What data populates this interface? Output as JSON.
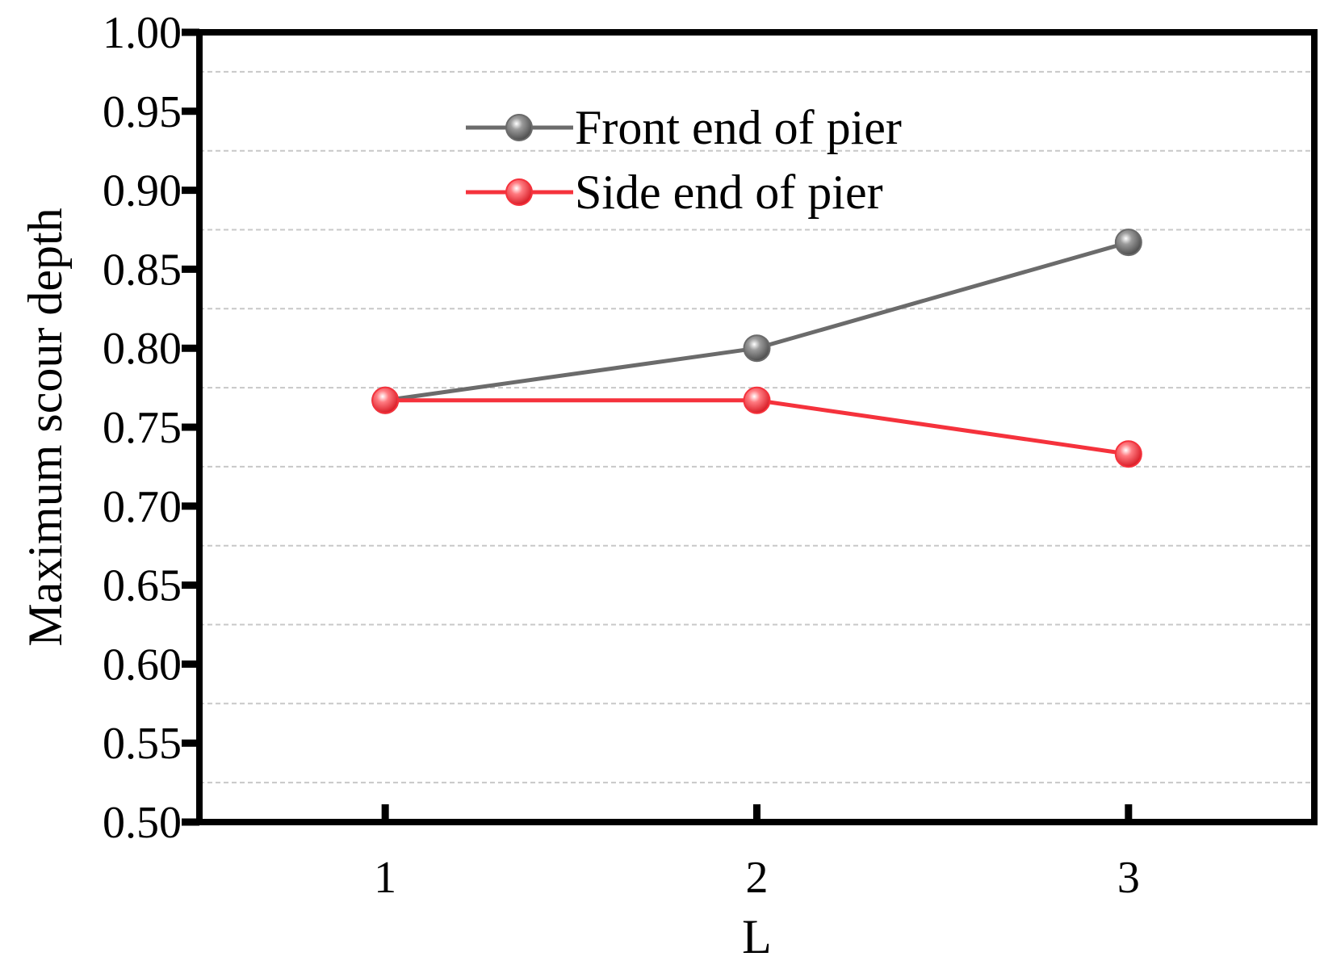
{
  "chart_data": {
    "type": "line",
    "title": "",
    "xlabel": "L",
    "ylabel": "Maximum scour depth",
    "x": [
      1,
      2,
      3
    ],
    "x_tick_labels": [
      "1",
      "2",
      "3"
    ],
    "xlim": [
      0.5,
      3.5
    ],
    "ylim": [
      0.5,
      1.0
    ],
    "y_ticks": [
      0.5,
      0.55,
      0.6,
      0.65,
      0.7,
      0.75,
      0.8,
      0.85,
      0.9,
      0.95,
      1.0
    ],
    "y_tick_labels": [
      "0.50",
      "0.55",
      "0.60",
      "0.65",
      "0.70",
      "0.75",
      "0.80",
      "0.85",
      "0.90",
      "0.95",
      "1.00"
    ],
    "grid": true,
    "legend_position": "top-center",
    "series": [
      {
        "name": "Front end of pier",
        "color": "#6b6b6b",
        "values": [
          0.767,
          0.8,
          0.867
        ]
      },
      {
        "name": "Side end of pier",
        "color": "#f5323c",
        "values": [
          0.767,
          0.767,
          0.733
        ]
      }
    ]
  }
}
